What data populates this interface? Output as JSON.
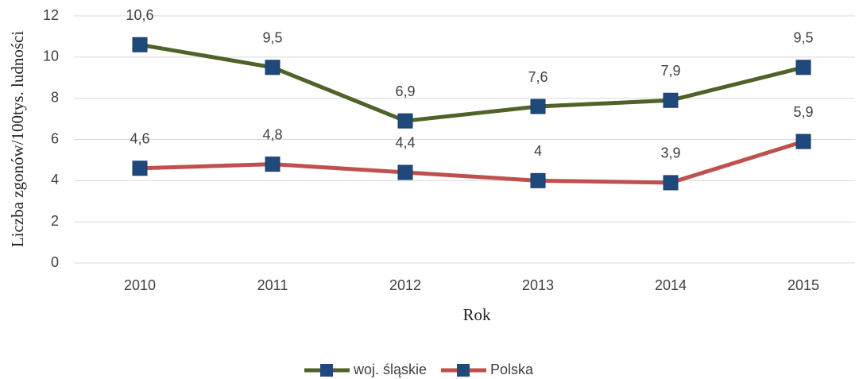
{
  "chart_data": {
    "type": "line",
    "x_label": "Rok",
    "y_label": "Liczba zgonów/100tys. ludności",
    "categories": [
      "2010",
      "2011",
      "2012",
      "2013",
      "2014",
      "2015"
    ],
    "series": [
      {
        "name": "woj. śląskie",
        "color": "#4f6228",
        "marker_color": "#1f497d",
        "values": [
          10.6,
          9.5,
          6.9,
          7.6,
          7.9,
          9.5
        ],
        "value_labels": [
          "10,6",
          "9,5",
          "6,9",
          "7,6",
          "7,9",
          "9,5"
        ]
      },
      {
        "name": "Polska",
        "color": "#c0504d",
        "marker_color": "#1f497d",
        "values": [
          4.6,
          4.8,
          4.4,
          4,
          3.9,
          5.9
        ],
        "value_labels": [
          "4,6",
          "4,8",
          "4,4",
          "4",
          "3,9",
          "5,9"
        ]
      }
    ],
    "ylim": [
      0,
      12
    ],
    "yticks": [
      0,
      2,
      4,
      6,
      8,
      10,
      12
    ],
    "grid": true,
    "legend": "bottom"
  }
}
